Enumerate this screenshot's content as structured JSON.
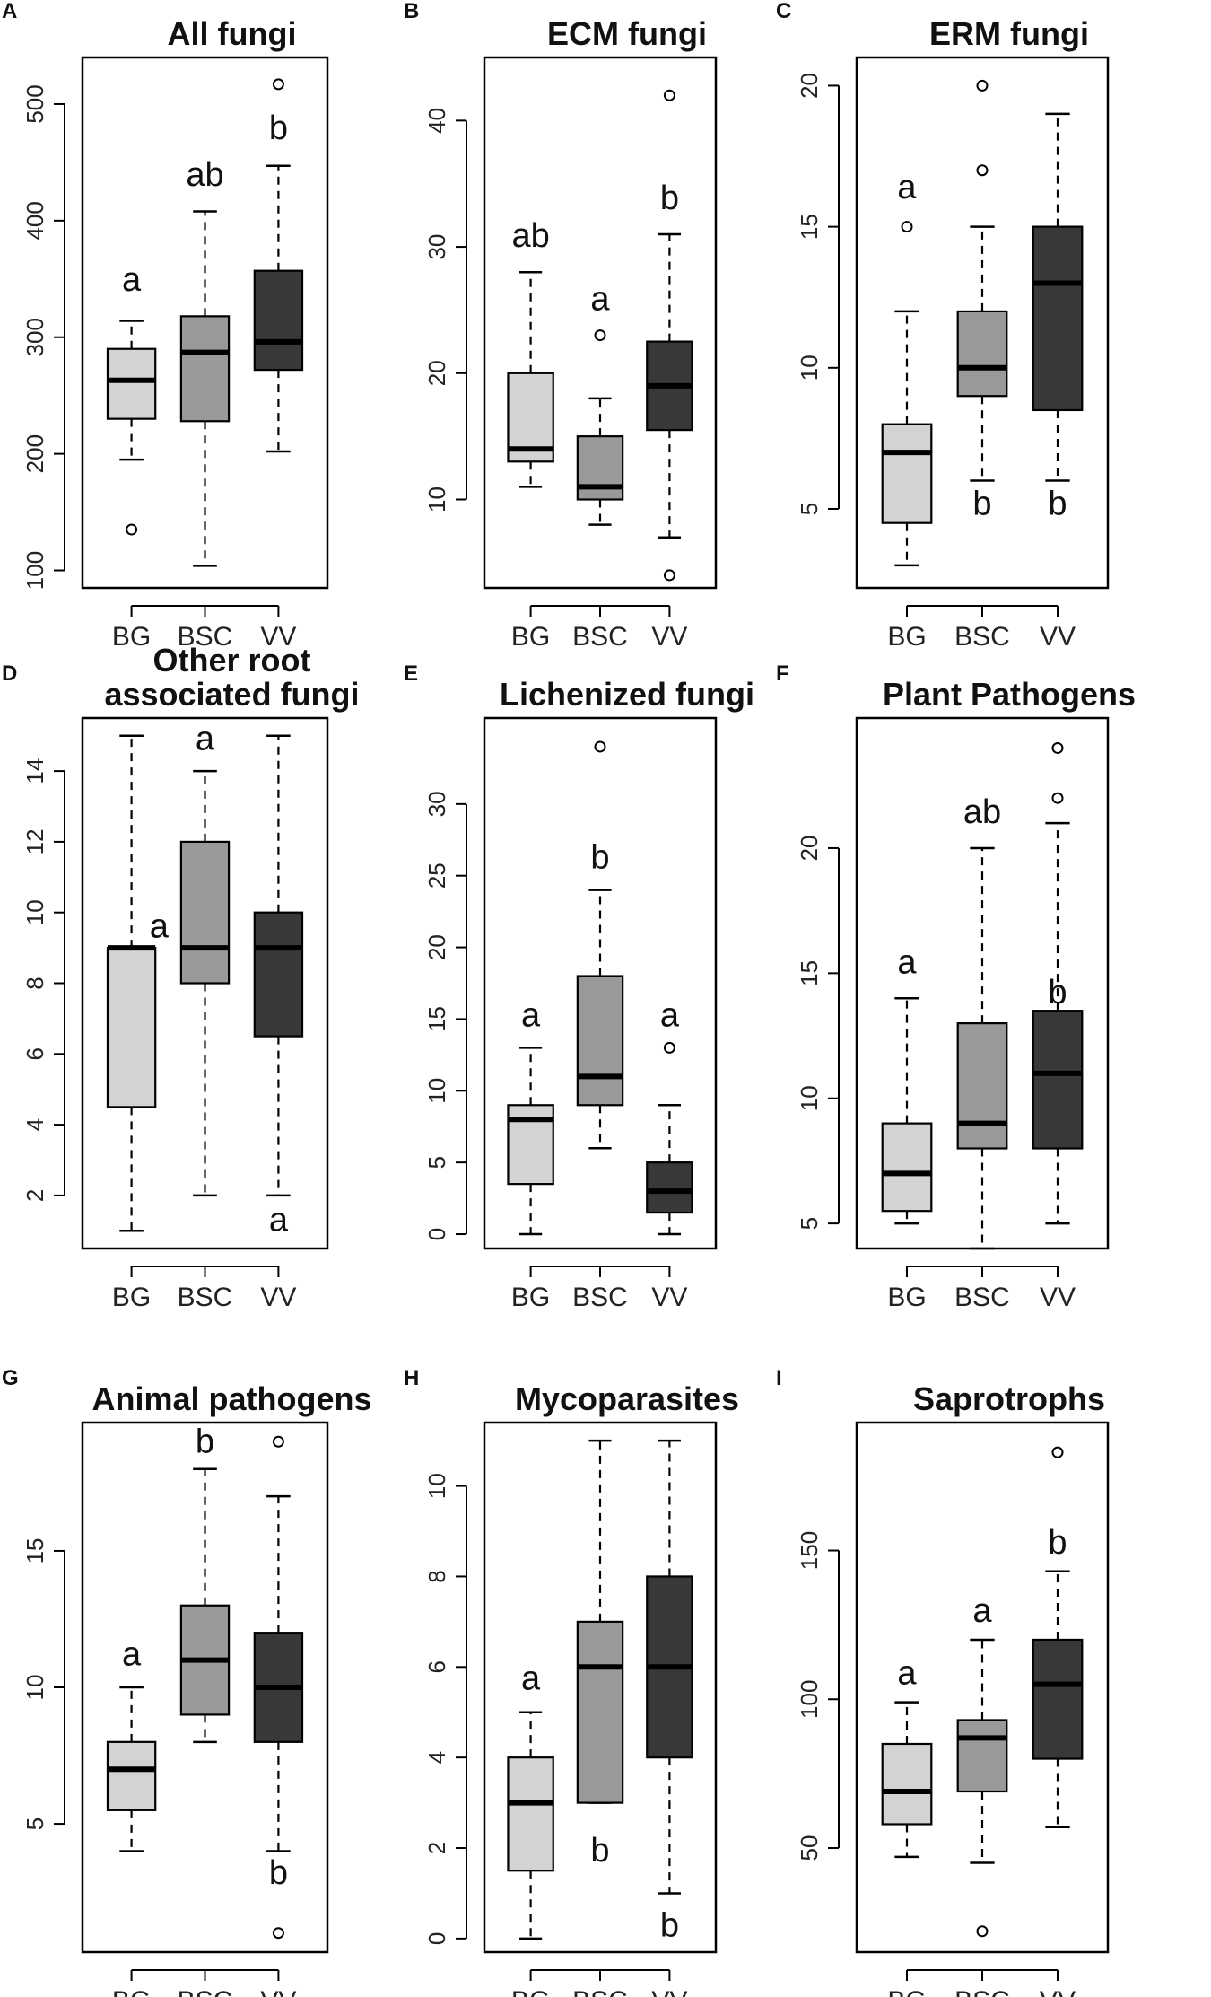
{
  "figure": {
    "description_labels": [
      "A",
      "B",
      "C",
      "D",
      "E",
      "F",
      "G",
      "H",
      "I"
    ]
  },
  "colors": {
    "BG": "#d3d3d3",
    "BSC": "#999999",
    "VV": "#383838",
    "median": "#000000",
    "border": "#000000"
  },
  "chart_data": [
    {
      "type": "boxplot",
      "label": "A",
      "title": [
        "All fungi"
      ],
      "categories": [
        "BG",
        "BSC",
        "VV"
      ],
      "ylim": [
        85,
        540
      ],
      "yticks": [
        100,
        200,
        300,
        400,
        500
      ],
      "boxes": [
        {
          "q1": 230,
          "median": 263,
          "q3": 290,
          "wlo": 195,
          "whi": 314,
          "outliers": [
            135
          ]
        },
        {
          "q1": 228,
          "median": 287,
          "q3": 318,
          "wlo": 104,
          "whi": 408,
          "outliers": []
        },
        {
          "q1": 272,
          "median": 296,
          "q3": 357,
          "wlo": 202,
          "whi": 447,
          "outliers": [
            517
          ]
        }
      ],
      "letters": [
        {
          "text": "a",
          "group": 0,
          "y": 340
        },
        {
          "text": "ab",
          "group": 1,
          "y": 430
        },
        {
          "text": "b",
          "group": 2,
          "y": 470
        }
      ]
    },
    {
      "type": "boxplot",
      "label": "B",
      "title": [
        "ECM fungi"
      ],
      "categories": [
        "BG",
        "BSC",
        "VV"
      ],
      "ylim": [
        3,
        45
      ],
      "yticks": [
        10,
        20,
        30,
        40
      ],
      "boxes": [
        {
          "q1": 13,
          "median": 14,
          "q3": 20,
          "wlo": 11,
          "whi": 28,
          "outliers": []
        },
        {
          "q1": 10,
          "median": 11,
          "q3": 15,
          "wlo": 8,
          "whi": 18,
          "outliers": [
            23
          ]
        },
        {
          "q1": 15.5,
          "median": 19,
          "q3": 22.5,
          "wlo": 7,
          "whi": 31,
          "outliers": [
            4,
            42
          ]
        }
      ],
      "letters": [
        {
          "text": "ab",
          "group": 0,
          "y": 30
        },
        {
          "text": "a",
          "group": 1,
          "y": 25
        },
        {
          "text": "b",
          "group": 2,
          "y": 33
        }
      ]
    },
    {
      "type": "boxplot",
      "label": "C",
      "title": [
        "ERM fungi"
      ],
      "categories": [
        "BG",
        "BSC",
        "VV"
      ],
      "ylim": [
        2.2,
        21
      ],
      "yticks": [
        5,
        10,
        15,
        20
      ],
      "boxes": [
        {
          "q1": 4.5,
          "median": 7,
          "q3": 8,
          "wlo": 3,
          "whi": 12,
          "outliers": [
            15
          ]
        },
        {
          "q1": 9,
          "median": 10,
          "q3": 12,
          "wlo": 6,
          "whi": 15,
          "outliers": [
            17,
            20
          ]
        },
        {
          "q1": 8.5,
          "median": 13,
          "q3": 15,
          "wlo": 6,
          "whi": 19,
          "outliers": []
        }
      ],
      "letters": [
        {
          "text": "a",
          "group": 0,
          "y": 16
        },
        {
          "text": "b",
          "group": 1,
          "y": 4.8
        },
        {
          "text": "b",
          "group": 2,
          "y": 4.8
        }
      ]
    },
    {
      "type": "boxplot",
      "label": "D",
      "title": [
        "Other root",
        "associated fungi"
      ],
      "categories": [
        "BG",
        "BSC",
        "VV"
      ],
      "ylim": [
        0.5,
        15.5
      ],
      "yticks": [
        2,
        4,
        6,
        8,
        10,
        12,
        14
      ],
      "boxes": [
        {
          "q1": 4.5,
          "median": 9,
          "q3": 9,
          "wlo": 1,
          "whi": 15,
          "outliers": []
        },
        {
          "q1": 8,
          "median": 9,
          "q3": 12,
          "wlo": 2,
          "whi": 14,
          "outliers": []
        },
        {
          "q1": 6.5,
          "median": 9,
          "q3": 10,
          "wlo": 2,
          "whi": 15,
          "outliers": []
        }
      ],
      "letters": [
        {
          "text": "a",
          "group": 0,
          "y": 9.3,
          "dx": 0.75
        },
        {
          "text": "a",
          "group": 1,
          "y": 14.6
        },
        {
          "text": "a",
          "group": 2,
          "y": 1.0
        }
      ]
    },
    {
      "type": "boxplot",
      "label": "E",
      "title": [
        "Lichenized fungi"
      ],
      "categories": [
        "BG",
        "BSC",
        "VV"
      ],
      "ylim": [
        -1,
        36
      ],
      "yticks": [
        0,
        5,
        10,
        15,
        20,
        25,
        30
      ],
      "boxes": [
        {
          "q1": 3.5,
          "median": 8,
          "q3": 9,
          "wlo": 0,
          "whi": 13,
          "outliers": []
        },
        {
          "q1": 9,
          "median": 11,
          "q3": 18,
          "wlo": 6,
          "whi": 24,
          "outliers": [
            34
          ]
        },
        {
          "q1": 1.5,
          "median": 3,
          "q3": 5,
          "wlo": 0,
          "whi": 9,
          "outliers": [
            13
          ]
        }
      ],
      "letters": [
        {
          "text": "a",
          "group": 0,
          "y": 14.5
        },
        {
          "text": "b",
          "group": 1,
          "y": 25.5
        },
        {
          "text": "a",
          "group": 2,
          "y": 14.5
        }
      ]
    },
    {
      "type": "boxplot",
      "label": "F",
      "title": [
        "Plant Pathogens"
      ],
      "categories": [
        "BG",
        "BSC",
        "VV"
      ],
      "ylim": [
        4,
        25.2
      ],
      "yticks": [
        5,
        10,
        15,
        20
      ],
      "boxes": [
        {
          "q1": 5.5,
          "median": 7,
          "q3": 9,
          "wlo": 5,
          "whi": 14,
          "outliers": []
        },
        {
          "q1": 8,
          "median": 9,
          "q3": 13,
          "wlo": 4,
          "whi": 20,
          "outliers": []
        },
        {
          "q1": 8,
          "median": 11,
          "q3": 13.5,
          "wlo": 5,
          "whi": 21,
          "outliers": [
            22,
            24
          ]
        }
      ],
      "letters": [
        {
          "text": "a",
          "group": 0,
          "y": 15
        },
        {
          "text": "ab",
          "group": 1,
          "y": 21
        },
        {
          "text": "b",
          "group": 2,
          "y": 13.8
        }
      ]
    },
    {
      "type": "boxplot",
      "label": "G",
      "title": [
        "Animal pathogens"
      ],
      "categories": [
        "BG",
        "BSC",
        "VV"
      ],
      "ylim": [
        0.3,
        19.7
      ],
      "yticks": [
        5,
        10,
        15
      ],
      "boxes": [
        {
          "q1": 5.5,
          "median": 7,
          "q3": 8,
          "wlo": 4,
          "whi": 10,
          "outliers": []
        },
        {
          "q1": 9,
          "median": 11,
          "q3": 13,
          "wlo": 8,
          "whi": 18,
          "outliers": []
        },
        {
          "q1": 8,
          "median": 10,
          "q3": 12,
          "wlo": 4,
          "whi": 17,
          "outliers": [
            1,
            19
          ]
        }
      ],
      "letters": [
        {
          "text": "a",
          "group": 0,
          "y": 10.8
        },
        {
          "text": "b",
          "group": 1,
          "y": 18.6
        },
        {
          "text": "b",
          "group": 2,
          "y": 2.8
        }
      ]
    },
    {
      "type": "boxplot",
      "label": "H",
      "title": [
        "Mycoparasites"
      ],
      "categories": [
        "BG",
        "BSC",
        "VV"
      ],
      "ylim": [
        -0.3,
        11.4
      ],
      "yticks": [
        0,
        2,
        4,
        6,
        8,
        10
      ],
      "boxes": [
        {
          "q1": 1.5,
          "median": 3,
          "q3": 4,
          "wlo": 0,
          "whi": 5,
          "outliers": []
        },
        {
          "q1": 3,
          "median": 6,
          "q3": 7,
          "wlo": 3,
          "whi": 11,
          "outliers": []
        },
        {
          "q1": 4,
          "median": 6,
          "q3": 8,
          "wlo": 1,
          "whi": 11,
          "outliers": []
        }
      ],
      "letters": [
        {
          "text": "a",
          "group": 0,
          "y": 5.5
        },
        {
          "text": "b",
          "group": 1,
          "y": 1.7
        },
        {
          "text": "b",
          "group": 2,
          "y": 0.05
        }
      ]
    },
    {
      "type": "boxplot",
      "label": "I",
      "title": [
        "Saprotrophs"
      ],
      "categories": [
        "BG",
        "BSC",
        "VV"
      ],
      "ylim": [
        15,
        193
      ],
      "yticks": [
        50,
        100,
        150
      ],
      "boxes": [
        {
          "q1": 58,
          "median": 69,
          "q3": 85,
          "wlo": 47,
          "whi": 99,
          "outliers": []
        },
        {
          "q1": 69,
          "median": 87,
          "q3": 93,
          "wlo": 45,
          "whi": 120,
          "outliers": [
            22
          ]
        },
        {
          "q1": 80,
          "median": 105,
          "q3": 120,
          "wlo": 57,
          "whi": 143,
          "outliers": [
            183
          ]
        }
      ],
      "letters": [
        {
          "text": "a",
          "group": 0,
          "y": 105
        },
        {
          "text": "a",
          "group": 1,
          "y": 126
        },
        {
          "text": "b",
          "group": 2,
          "y": 149
        }
      ]
    }
  ]
}
